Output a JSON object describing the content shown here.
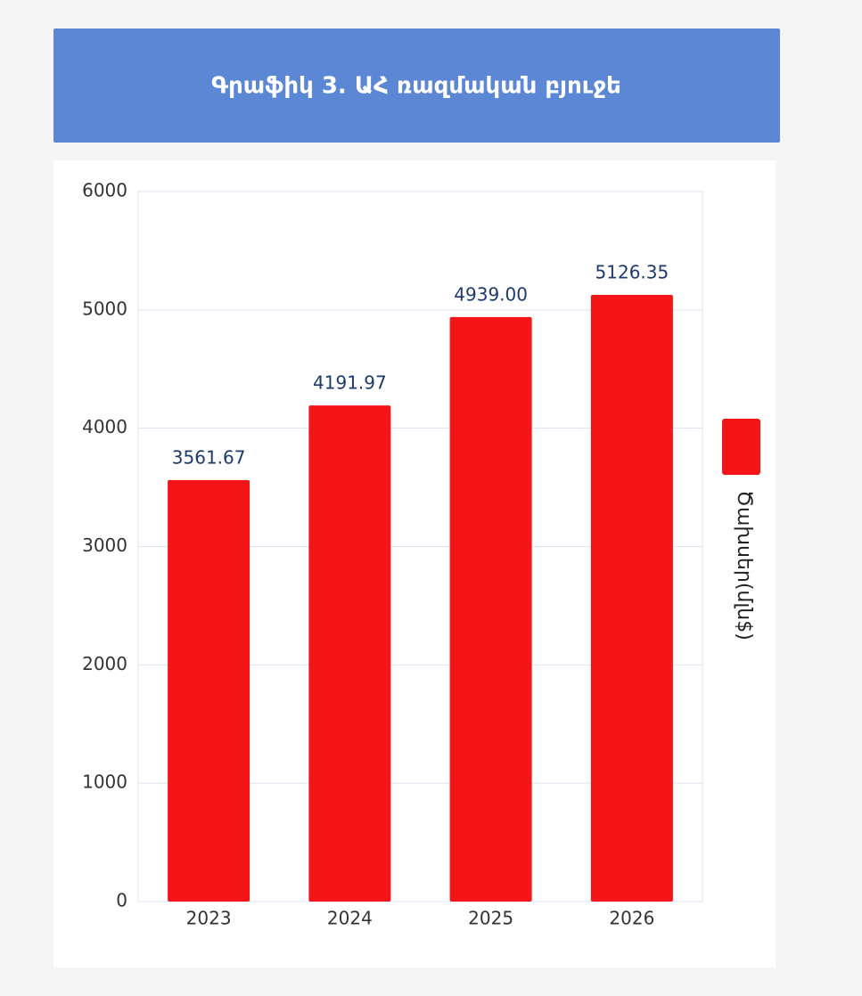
{
  "chart_data": {
    "type": "bar",
    "title": "Գրաֆիկ 3. ԱՀ ռազմական բյուջե",
    "categories": [
      "2023",
      "2024",
      "2025",
      "2026"
    ],
    "series": [
      {
        "name": "Ծախսեր(մլն$)",
        "color": "#f41518",
        "values": [
          3561.67,
          4191.97,
          4939.0,
          5126.35
        ],
        "value_labels": [
          "3561.67",
          "4191.97",
          "4939.00",
          "5126.35"
        ]
      }
    ],
    "ylim": [
      0,
      6000
    ],
    "yticks": [
      0,
      1000,
      2000,
      3000,
      4000,
      5000,
      6000
    ],
    "grid": true
  }
}
